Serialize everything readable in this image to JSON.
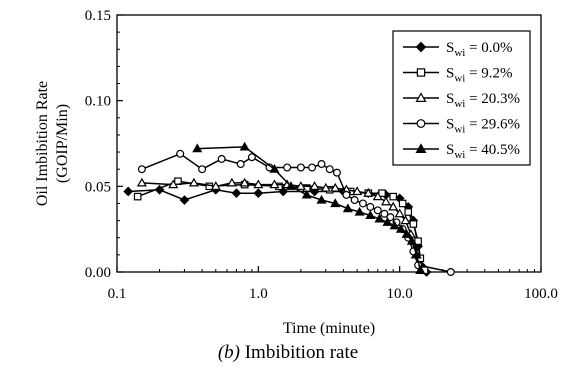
{
  "caption": {
    "label": "(b)",
    "text": "Imbibition rate"
  },
  "chart_data": {
    "type": "line",
    "title": "",
    "xlabel": "Time (minute)",
    "ylabel_lines": [
      "Oil Imbibition Rate",
      "(GOIP/Min)"
    ],
    "xscale": "log",
    "xlim": [
      0.1,
      100.0
    ],
    "ylim": [
      0.0,
      0.15
    ],
    "xticks": [
      "0.1",
      "1.0",
      "10.0",
      "100.0"
    ],
    "yticks": [
      "0.00",
      "0.05",
      "0.10",
      "0.15"
    ],
    "grid": false,
    "legend_position": "top-right",
    "series": [
      {
        "name": "S_wi = 0.0%",
        "label_main": "S",
        "label_sub": "wi",
        "label_rest": " = 0.0%",
        "marker": "filled-diamond",
        "x": [
          0.12,
          0.2,
          0.3,
          0.5,
          0.7,
          1.0,
          1.5,
          2.5,
          4.0,
          6.0,
          8.0,
          10.0,
          11.5,
          12.5,
          13.5,
          14.5,
          15.5
        ],
        "y": [
          0.047,
          0.048,
          0.042,
          0.048,
          0.046,
          0.046,
          0.047,
          0.047,
          0.047,
          0.046,
          0.045,
          0.043,
          0.038,
          0.03,
          0.015,
          0.003,
          0.0
        ]
      },
      {
        "name": "S_wi = 9.2%",
        "label_main": "S",
        "label_sub": "wi",
        "label_rest": " = 9.2%",
        "marker": "open-square",
        "x": [
          0.14,
          0.27,
          0.45,
          0.8,
          1.4,
          2.2,
          3.2,
          4.5,
          6.0,
          7.5,
          9.0,
          10.5,
          11.5,
          12.5,
          13.5,
          14.0,
          15.0
        ],
        "y": [
          0.044,
          0.053,
          0.05,
          0.051,
          0.05,
          0.049,
          0.048,
          0.047,
          0.046,
          0.046,
          0.044,
          0.04,
          0.035,
          0.028,
          0.018,
          0.008,
          0.001
        ]
      },
      {
        "name": "S_wi = 20.3%",
        "label_main": "S",
        "label_sub": "wi",
        "label_rest": " = 20.3%",
        "marker": "open-triangle",
        "x": [
          0.15,
          0.25,
          0.35,
          0.5,
          0.65,
          0.8,
          1.0,
          1.3,
          1.6,
          2.0,
          2.5,
          3.0,
          3.5,
          4.2,
          5.0,
          6.0,
          7.0,
          8.0,
          9.0,
          10.0,
          11.0,
          12.0,
          13.0,
          14.0
        ],
        "y": [
          0.052,
          0.051,
          0.052,
          0.05,
          0.052,
          0.052,
          0.051,
          0.051,
          0.051,
          0.05,
          0.05,
          0.049,
          0.049,
          0.048,
          0.047,
          0.046,
          0.044,
          0.041,
          0.038,
          0.034,
          0.03,
          0.022,
          0.01,
          0.001
        ]
      },
      {
        "name": "S_wi = 29.6%",
        "label_main": "S",
        "label_sub": "wi",
        "label_rest": " = 29.6%",
        "marker": "open-circle",
        "x": [
          0.15,
          0.28,
          0.4,
          0.55,
          0.75,
          0.9,
          1.2,
          1.6,
          2.0,
          2.4,
          2.8,
          3.2,
          3.6,
          4.2,
          4.8,
          5.5,
          6.2,
          7.0,
          7.8,
          8.6,
          9.5,
          10.5,
          11.5,
          12.5,
          13.5,
          23.0
        ],
        "y": [
          0.06,
          0.069,
          0.06,
          0.066,
          0.063,
          0.067,
          0.061,
          0.061,
          0.061,
          0.061,
          0.063,
          0.06,
          0.058,
          0.045,
          0.042,
          0.04,
          0.038,
          0.036,
          0.034,
          0.032,
          0.029,
          0.025,
          0.02,
          0.012,
          0.004,
          0.0
        ]
      },
      {
        "name": "S_wi = 40.5%",
        "label_main": "S",
        "label_sub": "wi",
        "label_rest": " = 40.5%",
        "marker": "filled-triangle",
        "x": [
          0.37,
          0.8,
          1.3,
          1.7,
          2.2,
          2.8,
          3.5,
          4.3,
          5.2,
          6.2,
          7.2,
          8.2,
          9.2,
          10.2,
          11.2,
          12.2,
          13.2,
          14.0
        ],
        "y": [
          0.072,
          0.073,
          0.06,
          0.05,
          0.045,
          0.042,
          0.04,
          0.037,
          0.035,
          0.033,
          0.031,
          0.029,
          0.027,
          0.025,
          0.022,
          0.018,
          0.01,
          0.001
        ]
      }
    ]
  }
}
